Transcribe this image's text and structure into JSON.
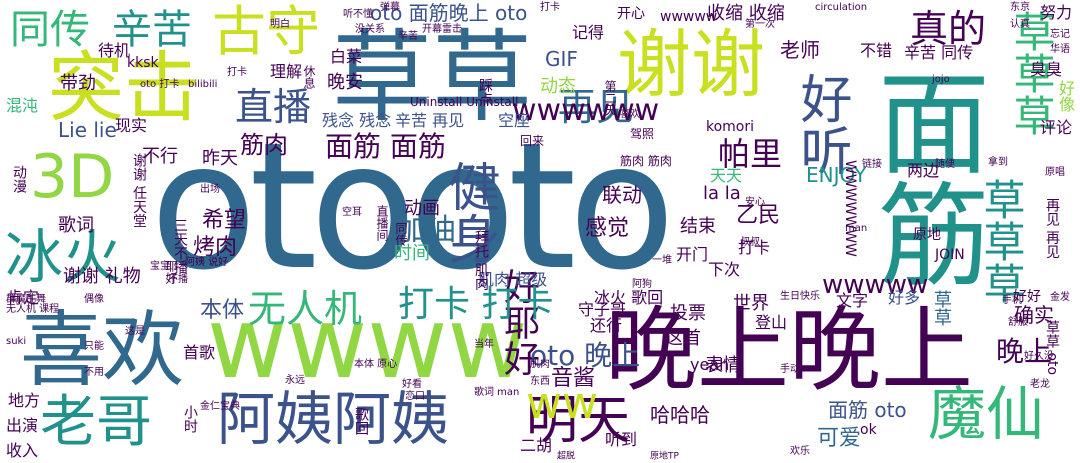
{
  "title": "",
  "palette": {
    "purple": "#440154",
    "indigo": "#3b528b",
    "blue": "#31688e",
    "teal": "#21918c",
    "green": "#35b779",
    "lime": "#90d743",
    "yellow": "#c8e020"
  },
  "words": [
    {
      "text": "otooto",
      "color": "#31688e"
    },
    {
      "text": "草草",
      "color": "#31688e"
    },
    {
      "text": "面筋",
      "color": "#21918c"
    },
    {
      "text": "wwww",
      "color": "#90d743"
    },
    {
      "text": "晚上晚上",
      "color": "#440154"
    },
    {
      "text": "喜欢",
      "color": "#31688e"
    },
    {
      "text": "谢谢",
      "color": "#c8e020"
    },
    {
      "text": "突击",
      "color": "#c8e020"
    },
    {
      "text": "阿姨阿姨",
      "color": "#3b528b"
    },
    {
      "text": "3D",
      "color": "#90d743"
    },
    {
      "text": "冰火",
      "color": "#21918c"
    },
    {
      "text": "老哥",
      "color": "#21918c"
    },
    {
      "text": "古守",
      "color": "#c8e020"
    },
    {
      "text": "明天",
      "color": "#440154"
    },
    {
      "text": "魔仙",
      "color": "#35b779"
    },
    {
      "text": "好听",
      "color": "#3b528b"
    },
    {
      "text": "草草草",
      "color": "#35b779"
    },
    {
      "text": "草草草",
      "color": "#21918c"
    },
    {
      "text": "健身",
      "color": "#3b528b"
    },
    {
      "text": "好耶好",
      "color": "#440154"
    },
    {
      "text": "ww",
      "color": "#c8e020"
    },
    {
      "text": "同传",
      "color": "#35b779"
    },
    {
      "text": "辛苦",
      "color": "#21918c"
    },
    {
      "text": "真的",
      "color": "#440154"
    },
    {
      "text": "直播",
      "color": "#3b528b"
    },
    {
      "text": "再见",
      "color": "#31688e"
    },
    {
      "text": "打卡 打卡",
      "color": "#21918c"
    },
    {
      "text": "无人机",
      "color": "#35b779"
    },
    {
      "text": "oto 面筋晚上 oto",
      "color": "#3b528b"
    },
    {
      "text": "面筋 面筋",
      "color": "#440154"
    },
    {
      "text": "wwwwww",
      "color": "#440154"
    },
    {
      "text": "帕里",
      "color": "#440154"
    },
    {
      "text": "加油",
      "color": "#31688e"
    },
    {
      "text": "筋肉",
      "color": "#440154"
    },
    {
      "text": "希望",
      "color": "#440154"
    },
    {
      "text": "烤肉",
      "color": "#440154"
    },
    {
      "text": "本体",
      "color": "#3b528b"
    },
    {
      "text": "oto 晚上",
      "color": "#3b528b"
    },
    {
      "text": "wwwww",
      "color": "#440154"
    },
    {
      "text": "晚上",
      "color": "#440154"
    },
    {
      "text": "音酱",
      "color": "#440154"
    },
    {
      "text": "感觉",
      "color": "#440154"
    },
    {
      "text": "联动",
      "color": "#440154"
    },
    {
      "text": "动画",
      "color": "#440154"
    },
    {
      "text": "乙民",
      "color": "#440154"
    },
    {
      "text": "ENJOY",
      "color": "#21918c"
    },
    {
      "text": "确实",
      "color": "#440154"
    },
    {
      "text": "可爱",
      "color": "#31688e"
    },
    {
      "text": "面筋 oto",
      "color": "#3b528b"
    },
    {
      "text": "哈哈哈",
      "color": "#440154"
    },
    {
      "text": "GIF",
      "color": "#3b528b"
    },
    {
      "text": "动态",
      "color": "#90d743"
    },
    {
      "text": "晚安",
      "color": "#440154"
    },
    {
      "text": "残念 残念",
      "color": "#3b528b"
    },
    {
      "text": "辛苦 再见",
      "color": "#3b528b"
    },
    {
      "text": "空座",
      "color": "#3b528b"
    },
    {
      "text": "Lie lie",
      "color": "#3b528b"
    },
    {
      "text": "带劲",
      "color": "#440154"
    },
    {
      "text": "老师",
      "color": "#440154"
    },
    {
      "text": "收缩 收缩",
      "color": "#440154"
    },
    {
      "text": "不行",
      "color": "#440154"
    },
    {
      "text": "昨天",
      "color": "#440154"
    },
    {
      "text": "歌词",
      "color": "#440154"
    },
    {
      "text": "谢谢 礼物",
      "color": "#440154"
    },
    {
      "text": "la la",
      "color": "#440154"
    },
    {
      "text": "天天",
      "color": "#35b779"
    },
    {
      "text": "打卡",
      "color": "#440154"
    },
    {
      "text": "世界",
      "color": "#440154"
    },
    {
      "text": "好多",
      "color": "#3b528b"
    },
    {
      "text": "草草",
      "color": "#31688e"
    },
    {
      "text": "文字",
      "color": "#440154"
    },
    {
      "text": "投票",
      "color": "#440154"
    },
    {
      "text": "守子哥",
      "color": "#440154"
    },
    {
      "text": "这首",
      "color": "#440154"
    },
    {
      "text": "表情",
      "color": "#440154"
    },
    {
      "text": "登山",
      "color": "#440154"
    },
    {
      "text": "冰火 歌回",
      "color": "#440154"
    },
    {
      "text": "结束",
      "color": "#440154"
    },
    {
      "text": "开门",
      "color": "#440154"
    },
    {
      "text": "下次",
      "color": "#440154"
    },
    {
      "text": "肌肉 超级",
      "color": "#3b528b"
    },
    {
      "text": "时间",
      "color": "#35b779"
    },
    {
      "text": "yeah",
      "color": "#440154"
    },
    {
      "text": "听到",
      "color": "#440154"
    },
    {
      "text": "二胡",
      "color": "#440154"
    },
    {
      "text": "还行",
      "color": "#440154"
    },
    {
      "text": "首歌",
      "color": "#440154"
    },
    {
      "text": "出演",
      "color": "#440154"
    },
    {
      "text": "收入",
      "color": "#440154"
    },
    {
      "text": "地方",
      "color": "#440154"
    },
    {
      "text": "肯定",
      "color": "#440154"
    },
    {
      "text": "现实",
      "color": "#440154"
    },
    {
      "text": "混沌",
      "color": "#35b779"
    },
    {
      "text": "待机",
      "color": "#440154"
    },
    {
      "text": "kksk",
      "color": "#440154"
    },
    {
      "text": "理解",
      "color": "#440154"
    },
    {
      "text": "白菜",
      "color": "#440154"
    },
    {
      "text": "记得",
      "color": "#440154"
    },
    {
      "text": "开心",
      "color": "#440154"
    },
    {
      "text": "不错",
      "color": "#440154"
    },
    {
      "text": "辛苦 同传",
      "color": "#440154"
    },
    {
      "text": "臭臭",
      "color": "#440154"
    },
    {
      "text": "评论",
      "color": "#440154"
    },
    {
      "text": "好像",
      "color": "#90d743"
    },
    {
      "text": "努力",
      "color": "#440154"
    },
    {
      "text": "两边",
      "color": "#440154"
    },
    {
      "text": "原地",
      "color": "#440154"
    },
    {
      "text": "好好",
      "color": "#440154"
    },
    {
      "text": "JOIN",
      "color": "#440154"
    },
    {
      "text": "再见 再见",
      "color": "#440154"
    },
    {
      "text": "草草 oto",
      "color": "#440154"
    },
    {
      "text": "ok",
      "color": "#440154"
    },
    {
      "text": "komori",
      "color": "#440154"
    },
    {
      "text": "Uninstall Uninstall",
      "color": "#440154"
    },
    {
      "text": "WWWWWWW",
      "color": "#440154"
    },
    {
      "text": "wwwww",
      "color": "#440154"
    },
    {
      "text": "筋肉 筋肉",
      "color": "#440154"
    },
    {
      "text": "驾照",
      "color": "#440154"
    },
    {
      "text": "回来",
      "color": "#440154"
    },
    {
      "text": "第二天",
      "color": "#440154"
    },
    {
      "text": "踩点",
      "color": "#440154"
    },
    {
      "text": "休息",
      "color": "#440154"
    },
    {
      "text": "直播间",
      "color": "#440154"
    },
    {
      "text": "同传",
      "color": "#440154"
    },
    {
      "text": "三天不播",
      "color": "#440154"
    },
    {
      "text": "谢谢 任天堂",
      "color": "#440154"
    },
    {
      "text": "动漫",
      "color": "#440154"
    },
    {
      "text": "耶好",
      "color": "#440154"
    },
    {
      "text": "歌回",
      "color": "#440154"
    },
    {
      "text": "小时",
      "color": "#440154"
    },
    {
      "text": "拜托 肌肉",
      "color": "#440154"
    },
    {
      "text": "oto 打卡",
      "color": "#440154"
    },
    {
      "text": "bilibili",
      "color": "#440154"
    },
    {
      "text": "第一次",
      "color": "#440154"
    },
    {
      "text": "circulation",
      "color": "#440154"
    },
    {
      "text": "华语",
      "color": "#440154"
    },
    {
      "text": "jojo",
      "color": "#440154"
    },
    {
      "text": "原唱",
      "color": "#440154"
    },
    {
      "text": "man",
      "color": "#440154"
    },
    {
      "text": "金发",
      "color": "#440154"
    },
    {
      "text": "suki",
      "color": "#440154"
    },
    {
      "text": "欢乐",
      "color": "#440154"
    },
    {
      "text": "没关系",
      "color": "#440154"
    },
    {
      "text": "辛苦",
      "color": "#440154"
    },
    {
      "text": "打卡",
      "color": "#440154"
    },
    {
      "text": "打卡",
      "color": "#440154"
    },
    {
      "text": "明白",
      "color": "#440154"
    },
    {
      "text": "无人机 课程",
      "color": "#440154"
    },
    {
      "text": "不播",
      "color": "#440154"
    },
    {
      "text": "偶像",
      "color": "#440154"
    },
    {
      "text": "群魔乱舞",
      "color": "#440154"
    },
    {
      "text": "宝宝",
      "color": "#440154"
    },
    {
      "text": "不用",
      "color": "#440154"
    },
    {
      "text": "只能",
      "color": "#440154"
    },
    {
      "text": "这是",
      "color": "#440154"
    },
    {
      "text": "阿姨 说好",
      "color": "#440154"
    },
    {
      "text": "出场",
      "color": "#440154"
    },
    {
      "text": "空耳",
      "color": "#440154"
    },
    {
      "text": "安心",
      "color": "#440154"
    },
    {
      "text": "叔叔",
      "color": "#440154"
    },
    {
      "text": "阿狗",
      "color": "#440154"
    },
    {
      "text": "生日快乐",
      "color": "#440154"
    },
    {
      "text": "当年",
      "color": "#440154"
    },
    {
      "text": "手机",
      "color": "#440154"
    },
    {
      "text": "舒服",
      "color": "#440154"
    },
    {
      "text": "好久没",
      "color": "#440154"
    },
    {
      "text": "老龙",
      "color": "#440154"
    },
    {
      "text": "原地TP",
      "color": "#440154"
    },
    {
      "text": "超脱",
      "color": "#440154"
    },
    {
      "text": "东西",
      "color": "#440154"
    },
    {
      "text": "歌词 man",
      "color": "#440154"
    },
    {
      "text": "恋口",
      "color": "#440154"
    },
    {
      "text": "肌肉",
      "color": "#440154"
    },
    {
      "text": "永远",
      "color": "#440154"
    },
    {
      "text": "本体 原心",
      "color": "#440154"
    },
    {
      "text": "好看",
      "color": "#440154"
    },
    {
      "text": "金仁宝典",
      "color": "#440154"
    },
    {
      "text": "弹幕",
      "color": "#440154"
    },
    {
      "text": "听不懂",
      "color": "#440154"
    },
    {
      "text": "开幕雷击",
      "color": "#440154"
    },
    {
      "text": "东京",
      "color": "#440154"
    },
    {
      "text": "认真",
      "color": "#440154"
    },
    {
      "text": "拿到",
      "color": "#440154"
    },
    {
      "text": "链接",
      "color": "#440154"
    },
    {
      "text": "随便",
      "color": "#440154"
    },
    {
      "text": "一堆",
      "color": "#440154"
    },
    {
      "text": "喜欢",
      "color": "#440154"
    },
    {
      "text": "手动",
      "color": "#440154"
    },
    {
      "text": "忘记",
      "color": "#440154"
    }
  ]
}
